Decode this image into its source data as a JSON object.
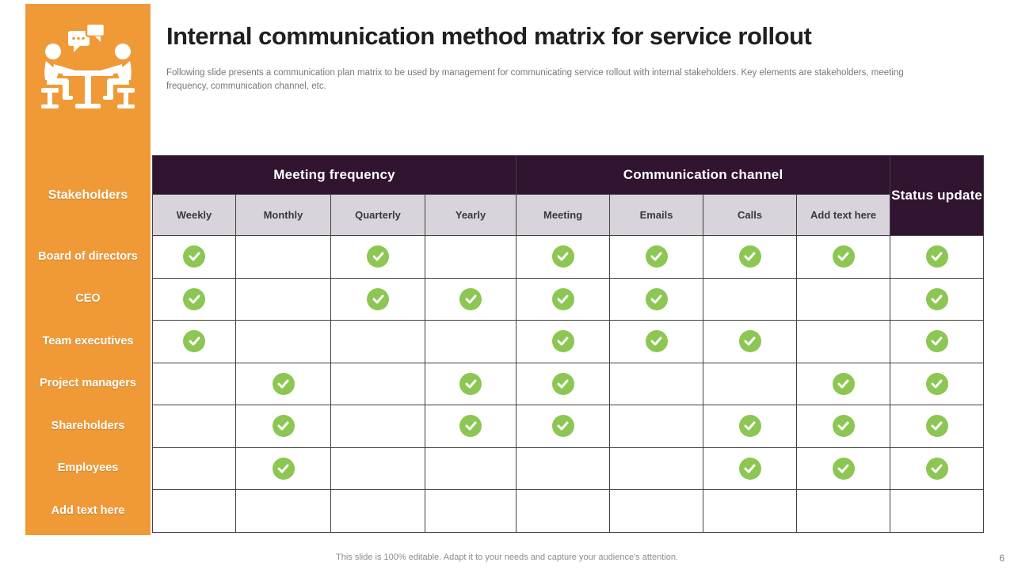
{
  "slide": {
    "title": "Internal communication method matrix for service rollout",
    "subtitle": "Following slide presents a communication plan matrix to be used by management for communicating service rollout with internal stakeholders. Key elements are stakeholders, meeting frequency, communication channel, etc.",
    "footer": "This slide is 100% editable. Adapt it to your needs and capture your audience's attention.",
    "page_number": "6"
  },
  "sidebar": {
    "header": "Stakeholders",
    "icon": "people-meeting-discussion-icon",
    "rows": [
      "Board of directors",
      "CEO",
      "Team executives",
      "Project managers",
      "Shareholders",
      "Employees",
      "Add text here"
    ]
  },
  "table": {
    "groups": [
      {
        "label": "Meeting frequency",
        "span": 4
      },
      {
        "label": "Communication channel",
        "span": 4
      }
    ],
    "status_header": "Status update",
    "columns": [
      "Weekly",
      "Monthly",
      "Quarterly",
      "Yearly",
      "Meeting",
      "Emails",
      "Calls",
      "Add text here"
    ],
    "rows": [
      {
        "label": "Board of directors",
        "checks": [
          1,
          0,
          1,
          0,
          1,
          1,
          1,
          1,
          1
        ]
      },
      {
        "label": "CEO",
        "checks": [
          1,
          0,
          1,
          1,
          1,
          1,
          0,
          0,
          1
        ]
      },
      {
        "label": "Team executives",
        "checks": [
          1,
          0,
          0,
          0,
          1,
          1,
          1,
          0,
          1
        ]
      },
      {
        "label": "Project managers",
        "checks": [
          0,
          1,
          0,
          1,
          1,
          0,
          0,
          1,
          1
        ]
      },
      {
        "label": "Shareholders",
        "checks": [
          0,
          1,
          0,
          1,
          1,
          0,
          1,
          1,
          1
        ]
      },
      {
        "label": "Employees",
        "checks": [
          0,
          1,
          0,
          0,
          0,
          0,
          1,
          1,
          1
        ]
      },
      {
        "label": "Add text here",
        "checks": [
          0,
          0,
          0,
          0,
          0,
          0,
          0,
          0,
          0
        ]
      }
    ]
  },
  "colors": {
    "accent_orange": "#F09A37",
    "header_purple": "#301430",
    "subheader_lavender": "#D9D3DC",
    "check_green": "#8CC653"
  }
}
